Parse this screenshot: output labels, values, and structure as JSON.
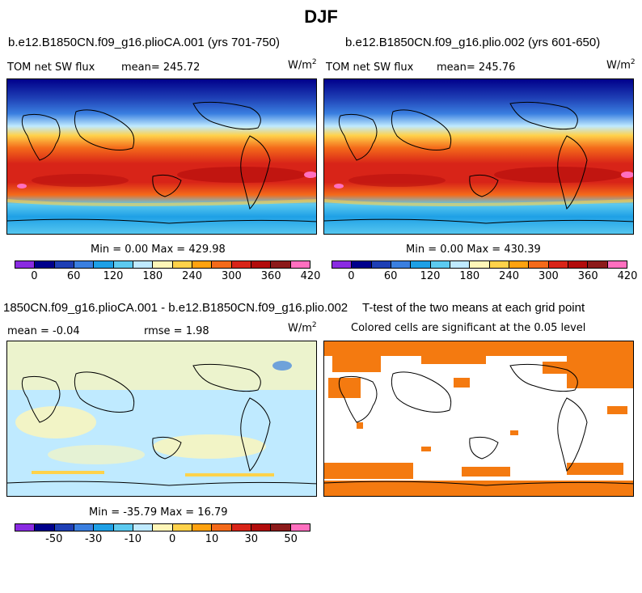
{
  "figure_title": "DJF",
  "panels": {
    "top_left": {
      "title": "b.e12.B1850CN.f09_g16.plioCA.001 (yrs 701-750)",
      "variable": "TOM net SW flux",
      "mean": "mean= 245.72",
      "units": "W/m",
      "units_exp": "2",
      "minmax": "Min =   0.00 Max = 429.98"
    },
    "top_right": {
      "title": "b.e12.B1850CN.f09_g16.plio.002 (yrs 601-650)",
      "variable": "TOM net SW flux",
      "mean": "mean= 245.76",
      "units": "W/m",
      "units_exp": "2",
      "minmax": "Min =   0.00 Max = 430.39"
    },
    "bottom_left": {
      "title": "1850CN.f09_g16.plioCA.001 - b.e12.B1850CN.f09_g16.plio.002",
      "mean": "mean = -0.04",
      "rmse": "rmse =   1.98",
      "units": "W/m",
      "units_exp": "2",
      "minmax": "Min = -35.79 Max = 16.79"
    },
    "bottom_right": {
      "title": "T-test of the two means at each grid point",
      "subtitle": "Colored cells are significant at the 0.05 level"
    }
  },
  "colorbars": {
    "abs": {
      "colors": [
        "#8a2be2",
        "#00008b",
        "#1e3fb5",
        "#3a7fe0",
        "#1ea0e6",
        "#5ccaf0",
        "#bfeaff",
        "#fff6b8",
        "#ffd24a",
        "#ffa20f",
        "#f46a1a",
        "#d82418",
        "#b20c0c",
        "#8c1a1a",
        "#ff6fbf"
      ],
      "labels": [
        "0",
        "60",
        "120",
        "180",
        "240",
        "300",
        "360",
        "420"
      ]
    },
    "diff": {
      "colors": [
        "#8a2be2",
        "#00008b",
        "#1e3fb5",
        "#3a7fe0",
        "#1ea0e6",
        "#5ccaf0",
        "#bfeaff",
        "#fff6b8",
        "#ffd24a",
        "#ffa20f",
        "#f46a1a",
        "#d82418",
        "#b20c0c",
        "#8c1a1a",
        "#ff6fbf"
      ],
      "labels": [
        "-50",
        "-30",
        "-10",
        "0",
        "10",
        "30",
        "50"
      ]
    }
  }
}
